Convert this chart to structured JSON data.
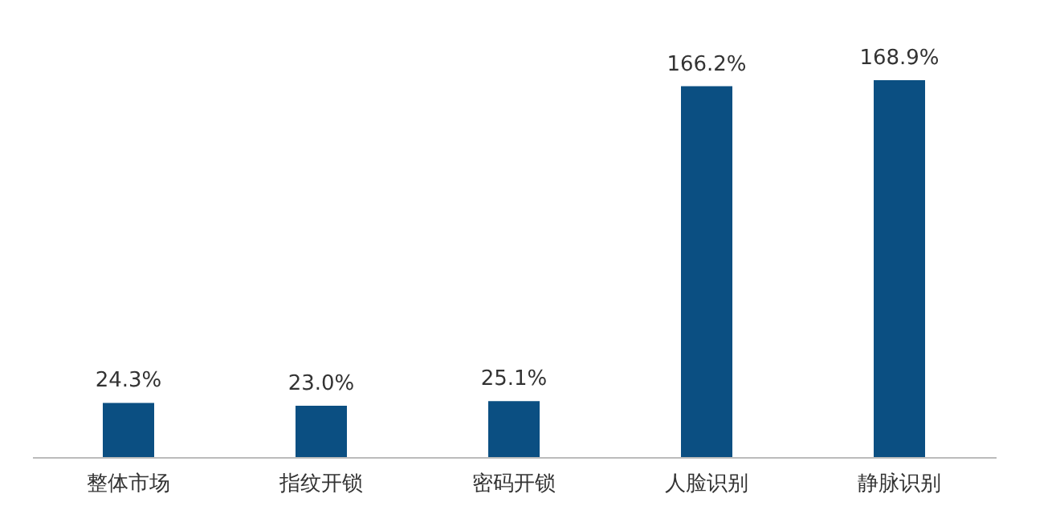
{
  "chart_data": {
    "type": "bar",
    "categories": [
      "整体市场",
      "指纹开锁",
      "密码开锁",
      "人脸识别",
      "静脉识别"
    ],
    "values": [
      24.3,
      23.0,
      25.1,
      166.2,
      168.9
    ],
    "value_labels": [
      "24.3%",
      "23.0%",
      "25.1%",
      "166.2%",
      "168.9%"
    ],
    "color": "#0b4f82",
    "tick_labels": "x"
  }
}
